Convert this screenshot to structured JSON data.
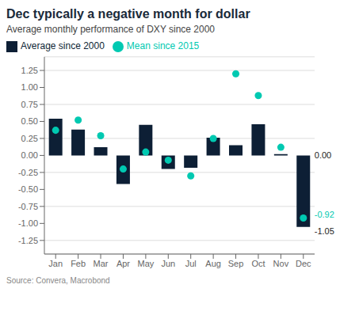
{
  "chart_data": {
    "type": "bar",
    "title": "Dec typically a negative month for dollar",
    "subtitle": "Average monthly performance of DXY since 2000",
    "source": "Source: Convera, Macrobond",
    "categories": [
      "Jan",
      "Feb",
      "Mar",
      "Apr",
      "May",
      "Jun",
      "Jul",
      "Aug",
      "Sep",
      "Oct",
      "Nov",
      "Dec"
    ],
    "series": [
      {
        "name": "Average since 2000",
        "type": "bar",
        "color": "#0d1f35",
        "values": [
          0.54,
          0.38,
          0.12,
          -0.42,
          0.45,
          -0.2,
          -0.18,
          0.26,
          0.15,
          0.46,
          0.02,
          -1.05
        ]
      },
      {
        "name": "Mean since 2015",
        "type": "scatter",
        "color": "#00c9b1",
        "values": [
          0.37,
          0.52,
          0.29,
          -0.2,
          0.05,
          -0.07,
          -0.3,
          0.25,
          1.2,
          0.88,
          0.12,
          -0.92
        ]
      }
    ],
    "ylim": [
      -1.45,
      1.45
    ],
    "yticks": [
      -1.25,
      {
        "value": -1,
        "label": "-1.00"
      },
      -0.75,
      {
        "value": -0.5,
        "label": "-0.50"
      },
      -0.25,
      {
        "value": 0,
        "label": "0.00"
      },
      0.25,
      {
        "value": 0.5,
        "label": "0.50"
      },
      0.75,
      {
        "value": 1,
        "label": "1.00"
      },
      1.25
    ],
    "grid": true,
    "legend": "top",
    "annotations": [
      {
        "text": "0.00",
        "category": "Dec",
        "value": 0
      },
      {
        "text": "-0.92",
        "category": "Dec",
        "value": -0.92,
        "color": "#00c9b1"
      },
      {
        "text": "-1.05",
        "category": "Dec",
        "value": -1.05
      }
    ]
  }
}
